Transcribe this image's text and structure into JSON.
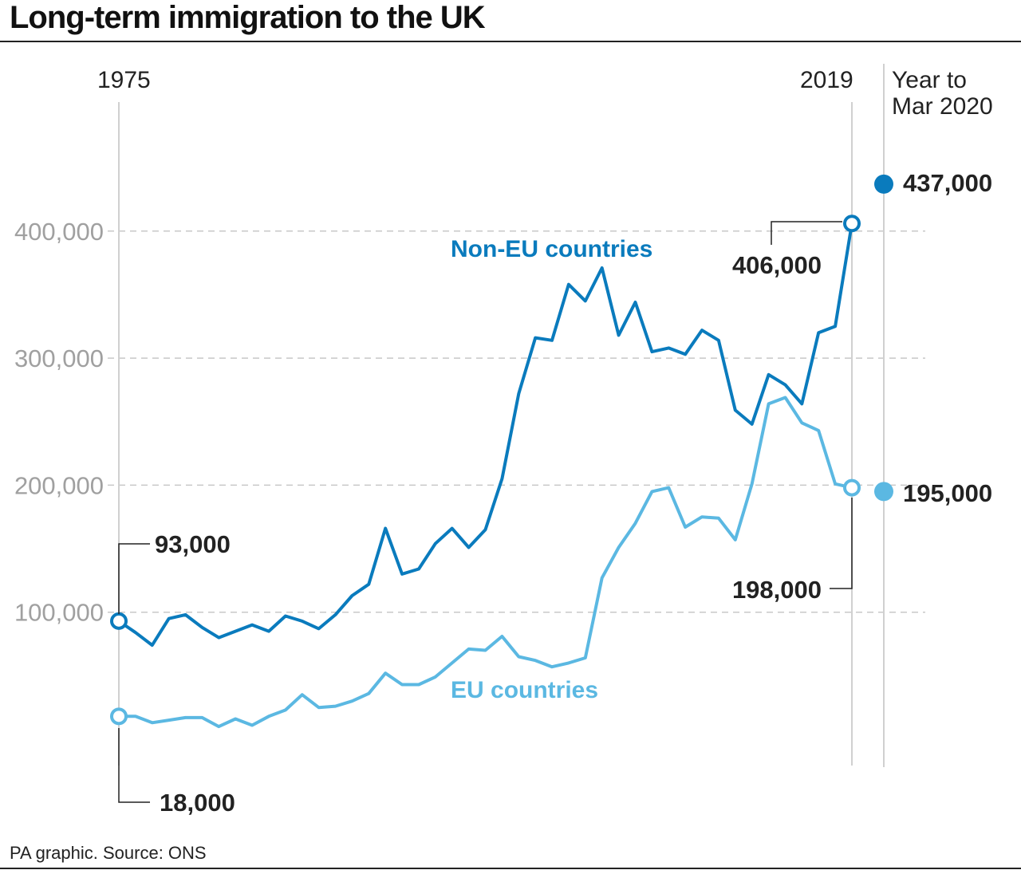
{
  "chart_data": {
    "type": "line",
    "title": "Long-term immigration to the UK",
    "source": "PA graphic. Source: ONS",
    "x_start_label": "1975",
    "x_end_label": "2019",
    "extra_period_label": [
      "Year to",
      "Mar 2020"
    ],
    "ylim": [
      0,
      450000
    ],
    "yticks": [
      100000,
      200000,
      300000,
      400000
    ],
    "ytick_labels": [
      "100,000",
      "200,000",
      "300,000",
      "400,000"
    ],
    "grid": "horizontal-dashed",
    "x": [
      1975,
      1976,
      1977,
      1978,
      1979,
      1980,
      1981,
      1982,
      1983,
      1984,
      1985,
      1986,
      1987,
      1988,
      1989,
      1990,
      1991,
      1992,
      1993,
      1994,
      1995,
      1996,
      1997,
      1998,
      1999,
      2000,
      2001,
      2002,
      2003,
      2004,
      2005,
      2006,
      2007,
      2008,
      2009,
      2010,
      2011,
      2012,
      2013,
      2014,
      2015,
      2016,
      2017,
      2018,
      2019
    ],
    "series": [
      {
        "name": "Non-EU countries",
        "color": "#0a7bbd",
        "values": [
          93000,
          84000,
          74000,
          95000,
          98000,
          88000,
          80000,
          85000,
          90000,
          85000,
          97000,
          93000,
          87000,
          98000,
          113000,
          122000,
          166000,
          130000,
          134000,
          154000,
          166000,
          151000,
          165000,
          205000,
          272000,
          316000,
          314000,
          358000,
          345000,
          371000,
          318000,
          344000,
          305000,
          308000,
          303000,
          322000,
          314000,
          259000,
          248000,
          287000,
          279000,
          264000,
          320000,
          325000,
          406000
        ],
        "start_label": "93,000",
        "end_label": "406,000",
        "extra_value": 437000,
        "extra_label": "437,000"
      },
      {
        "name": "EU countries",
        "color": "#5bb8e2",
        "values": [
          18000,
          18000,
          13000,
          15000,
          17000,
          17000,
          10000,
          16000,
          11000,
          18000,
          23000,
          35000,
          25000,
          26000,
          30000,
          36000,
          52000,
          43000,
          43000,
          49000,
          60000,
          71000,
          70000,
          81000,
          65000,
          62000,
          57000,
          60000,
          64000,
          127000,
          151000,
          170000,
          195000,
          198000,
          167000,
          175000,
          174000,
          157000,
          201000,
          264000,
          269000,
          249000,
          243000,
          201000,
          198000
        ],
        "start_label": "18,000",
        "end_label": "198,000",
        "extra_value": 195000,
        "extra_label": "195,000"
      }
    ]
  }
}
